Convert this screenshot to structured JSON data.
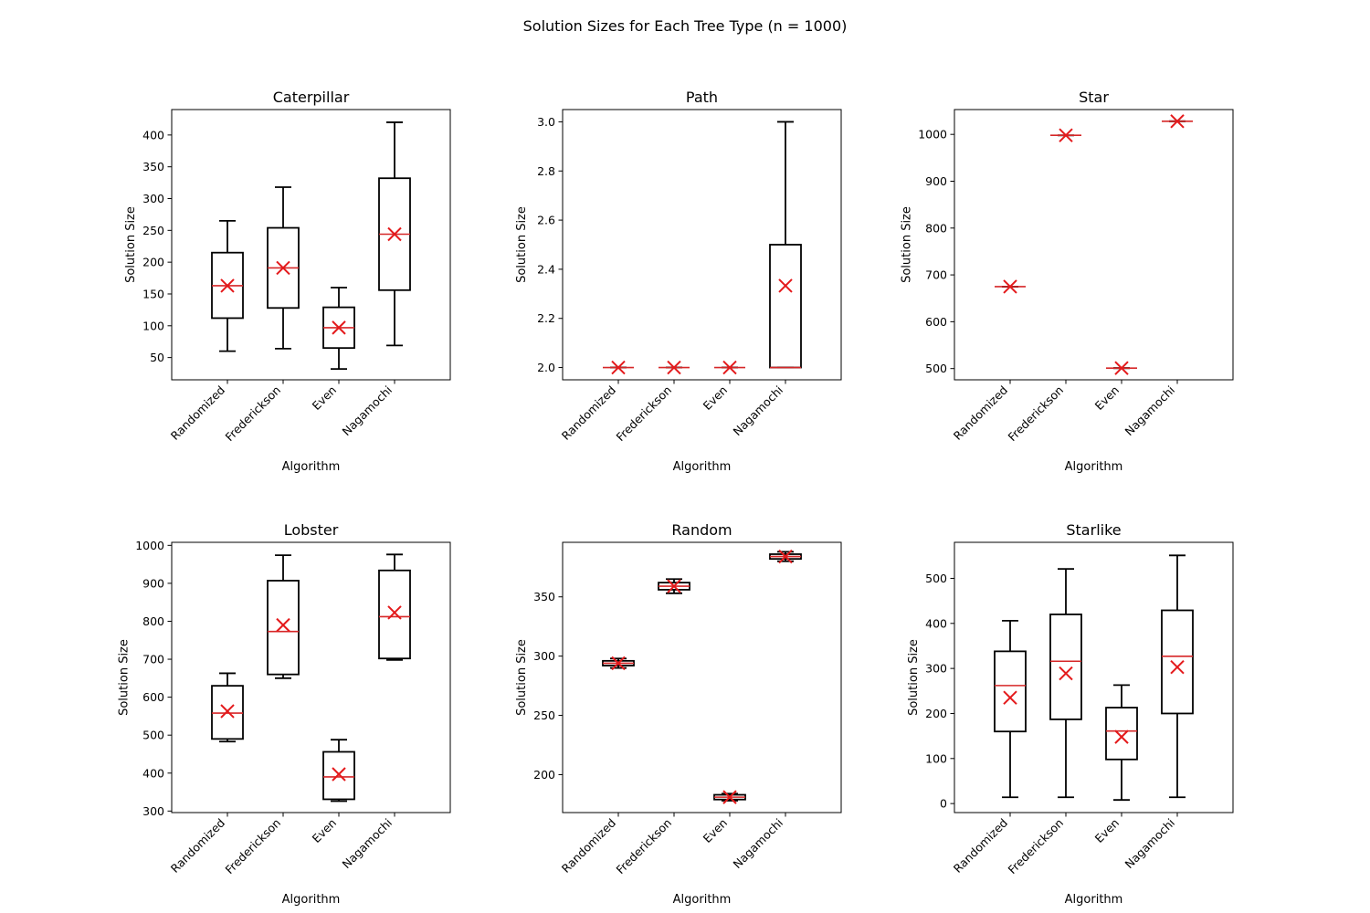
{
  "figure": {
    "title": "Solution Sizes for Each Tree Type (n = 1000)"
  },
  "colors": {
    "box": "#000000",
    "median": "#d62728",
    "mean_marker": "#e41a1c",
    "background": "#ffffff"
  },
  "chart_data": [
    {
      "type": "boxplot",
      "title": "Caterpillar",
      "xlabel": "Algorithm",
      "ylabel": "Solution Size",
      "categories": [
        "Randomized",
        "Frederickson",
        "Even",
        "Nagamochi"
      ],
      "ylim": [
        15,
        440
      ],
      "yticks": [
        50,
        100,
        150,
        200,
        250,
        300,
        350,
        400
      ],
      "boxes": [
        {
          "whisker_low": 60,
          "q1": 112,
          "median": 163,
          "q3": 215,
          "whisker_high": 265,
          "mean": 163
        },
        {
          "whisker_low": 64,
          "q1": 128,
          "median": 191,
          "q3": 254,
          "whisker_high": 318,
          "mean": 191
        },
        {
          "whisker_low": 32,
          "q1": 65,
          "median": 97,
          "q3": 129,
          "whisker_high": 160,
          "mean": 97
        },
        {
          "whisker_low": 69,
          "q1": 156,
          "median": 244,
          "q3": 332,
          "whisker_high": 420,
          "mean": 244
        }
      ]
    },
    {
      "type": "boxplot",
      "title": "Path",
      "xlabel": "Algorithm",
      "ylabel": "Solution Size",
      "categories": [
        "Randomized",
        "Frederickson",
        "Even",
        "Nagamochi"
      ],
      "ylim": [
        1.95,
        3.05
      ],
      "yticks": [
        2.0,
        2.2,
        2.4,
        2.6,
        2.8,
        3.0
      ],
      "tick_decimals": 1,
      "boxes": [
        {
          "whisker_low": 2,
          "q1": 2,
          "median": 2,
          "q3": 2,
          "whisker_high": 2,
          "mean": 2
        },
        {
          "whisker_low": 2,
          "q1": 2,
          "median": 2,
          "q3": 2,
          "whisker_high": 2,
          "mean": 2
        },
        {
          "whisker_low": 2,
          "q1": 2,
          "median": 2,
          "q3": 2,
          "whisker_high": 2,
          "mean": 2
        },
        {
          "whisker_low": 2,
          "q1": 2,
          "median": 2,
          "q3": 2.5,
          "whisker_high": 3,
          "mean": 2.333
        }
      ]
    },
    {
      "type": "boxplot",
      "title": "Star",
      "xlabel": "Algorithm",
      "ylabel": "Solution Size",
      "categories": [
        "Randomized",
        "Frederickson",
        "Even",
        "Nagamochi"
      ],
      "ylim": [
        476,
        1053
      ],
      "yticks": [
        500,
        600,
        700,
        800,
        900,
        1000
      ],
      "boxes": [
        {
          "whisker_low": 675,
          "q1": 675,
          "median": 675,
          "q3": 675,
          "whisker_high": 675,
          "mean": 675
        },
        {
          "whisker_low": 998,
          "q1": 998,
          "median": 998,
          "q3": 998,
          "whisker_high": 998,
          "mean": 998
        },
        {
          "whisker_low": 501,
          "q1": 501,
          "median": 501,
          "q3": 501,
          "whisker_high": 501,
          "mean": 501
        },
        {
          "whisker_low": 1028,
          "q1": 1028,
          "median": 1028,
          "q3": 1028,
          "whisker_high": 1028,
          "mean": 1028
        }
      ]
    },
    {
      "type": "boxplot",
      "title": "Lobster",
      "xlabel": "Algorithm",
      "ylabel": "Solution Size",
      "categories": [
        "Randomized",
        "Frederickson",
        "Even",
        "Nagamochi"
      ],
      "ylim": [
        296,
        1008
      ],
      "yticks": [
        300,
        400,
        500,
        600,
        700,
        800,
        900,
        1000
      ],
      "boxes": [
        {
          "whisker_low": 483,
          "q1": 490,
          "median": 558,
          "q3": 630,
          "whisker_high": 663,
          "mean": 563
        },
        {
          "whisker_low": 650,
          "q1": 660,
          "median": 773,
          "q3": 907,
          "whisker_high": 974,
          "mean": 790
        },
        {
          "whisker_low": 326,
          "q1": 331,
          "median": 390,
          "q3": 456,
          "whisker_high": 488,
          "mean": 397
        },
        {
          "whisker_low": 698,
          "q1": 702,
          "median": 812,
          "q3": 934,
          "whisker_high": 976,
          "mean": 823
        }
      ]
    },
    {
      "type": "boxplot",
      "title": "Random",
      "xlabel": "Algorithm",
      "ylabel": "Solution Size",
      "categories": [
        "Randomized",
        "Frederickson",
        "Even",
        "Nagamochi"
      ],
      "ylim": [
        168,
        396
      ],
      "yticks": [
        200,
        250,
        300,
        350
      ],
      "boxes": [
        {
          "whisker_low": 290,
          "q1": 292,
          "median": 294,
          "q3": 296,
          "whisker_high": 298,
          "mean": 294
        },
        {
          "whisker_low": 353,
          "q1": 356,
          "median": 359,
          "q3": 362,
          "whisker_high": 365,
          "mean": 359
        },
        {
          "whisker_low": 178,
          "q1": 179,
          "median": 181,
          "q3": 183,
          "whisker_high": 184,
          "mean": 181
        },
        {
          "whisker_low": 380,
          "q1": 382,
          "median": 384,
          "q3": 386,
          "whisker_high": 388,
          "mean": 384
        }
      ]
    },
    {
      "type": "boxplot",
      "title": "Starlike",
      "xlabel": "Algorithm",
      "ylabel": "Solution Size",
      "categories": [
        "Randomized",
        "Frederickson",
        "Even",
        "Nagamochi"
      ],
      "ylim": [
        -20,
        580
      ],
      "yticks": [
        0,
        100,
        200,
        300,
        400,
        500
      ],
      "boxes": [
        {
          "whisker_low": 14,
          "q1": 160,
          "median": 262,
          "q3": 338,
          "whisker_high": 406,
          "mean": 235
        },
        {
          "whisker_low": 14,
          "q1": 187,
          "median": 316,
          "q3": 420,
          "whisker_high": 521,
          "mean": 289
        },
        {
          "whisker_low": 8,
          "q1": 98,
          "median": 161,
          "q3": 213,
          "whisker_high": 263,
          "mean": 148
        },
        {
          "whisker_low": 14,
          "q1": 200,
          "median": 327,
          "q3": 429,
          "whisker_high": 551,
          "mean": 303
        }
      ]
    }
  ]
}
